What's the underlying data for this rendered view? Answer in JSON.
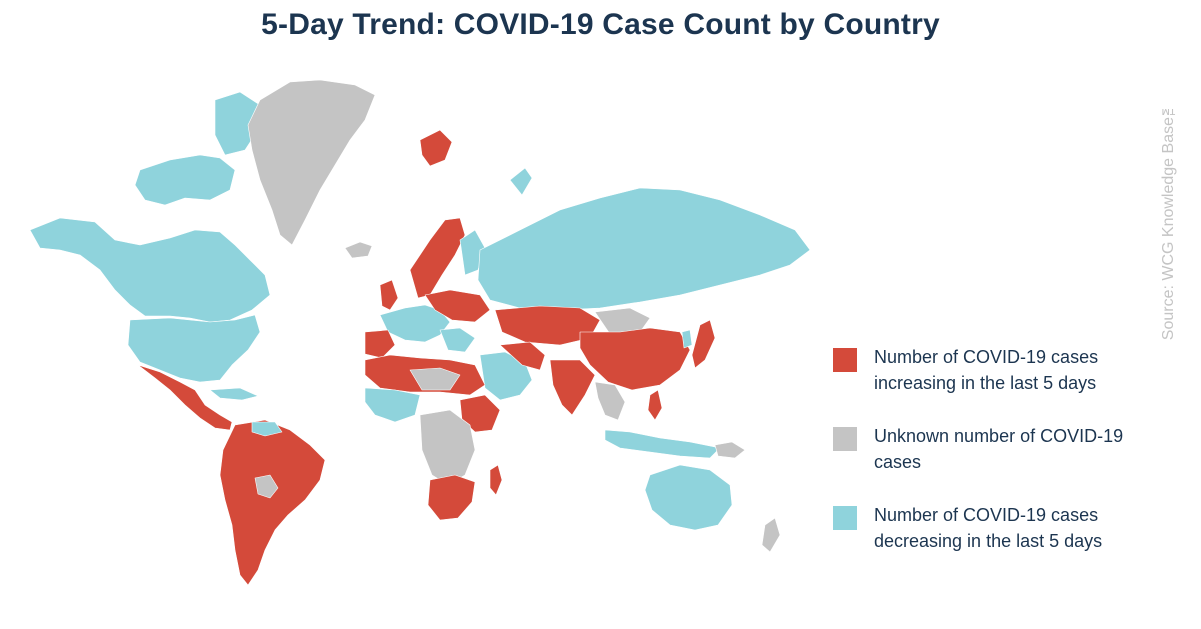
{
  "title": "5-Day Trend: COVID-19 Case Count by Country",
  "source": "Source: WCG Knowledge Base™",
  "colors": {
    "increasing": "#d44a3a",
    "unknown": "#c4c4c4",
    "decreasing": "#8fd3dc",
    "title": "#1c3550"
  },
  "legend": [
    {
      "key": "increasing",
      "label": "Number of COVID-19 cases increasing in the last 5 days"
    },
    {
      "key": "unknown",
      "label": "Unknown number of COVID-19 cases"
    },
    {
      "key": "decreasing",
      "label": "Number of COVID-19 cases decreasing in the last 5 days"
    }
  ]
}
